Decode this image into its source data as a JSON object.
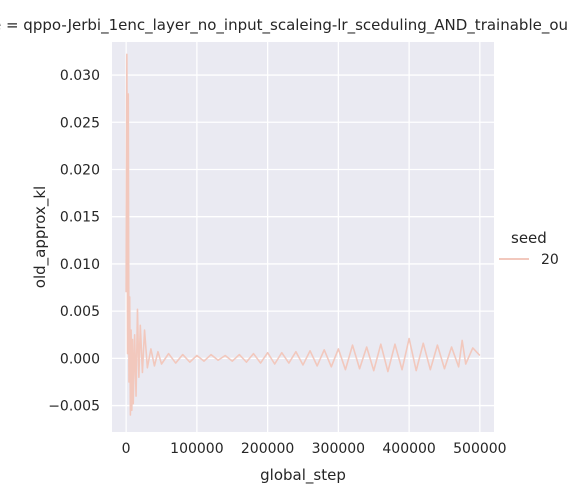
{
  "chart_data": {
    "type": "line",
    "title": "e = qppo-Jerbi_1enc_layer_no_input_scaleing-lr_sceduling_AND_trainable_ou",
    "xlabel": "global_step",
    "ylabel": "old_approx_kl",
    "xlim": [
      -20000,
      520000
    ],
    "ylim": [
      -0.0078,
      0.0335
    ],
    "x_ticks": [
      0,
      100000,
      200000,
      300000,
      400000,
      500000
    ],
    "x_tick_labels": [
      "0",
      "100000",
      "200000",
      "300000",
      "400000",
      "500000"
    ],
    "y_ticks": [
      -0.005,
      0.0,
      0.005,
      0.01,
      0.015,
      0.02,
      0.025,
      0.03
    ],
    "y_tick_labels": [
      "−0.005",
      "0.000",
      "0.005",
      "0.010",
      "0.015",
      "0.020",
      "0.025",
      "0.030"
    ],
    "grid": true,
    "background": "#eaeaf2",
    "grid_color": "#ffffff",
    "line_color": "#f2c8bd",
    "legend": {
      "title": "seed",
      "placement": "right",
      "entries": [
        "20"
      ]
    },
    "series": [
      {
        "name": "20",
        "x": [
          0,
          1000,
          2000,
          3000,
          4000,
          5000,
          6000,
          7000,
          8000,
          9000,
          10000,
          12000,
          14000,
          16000,
          18000,
          20000,
          23000,
          26000,
          30000,
          35000,
          40000,
          45000,
          50000,
          60000,
          70000,
          80000,
          90000,
          100000,
          110000,
          120000,
          130000,
          140000,
          150000,
          160000,
          170000,
          180000,
          190000,
          200000,
          210000,
          220000,
          230000,
          240000,
          250000,
          260000,
          270000,
          280000,
          290000,
          300000,
          310000,
          320000,
          330000,
          340000,
          350000,
          360000,
          370000,
          380000,
          390000,
          400000,
          410000,
          420000,
          430000,
          440000,
          450000,
          460000,
          470000,
          475000,
          480000,
          490000,
          500000
        ],
        "y": [
          0.007,
          0.0322,
          0.0005,
          0.028,
          -0.0025,
          0.0065,
          -0.006,
          0.003,
          -0.0055,
          0.002,
          -0.0048,
          0.0025,
          -0.004,
          0.0052,
          -0.002,
          0.0035,
          -0.0015,
          0.003,
          -0.001,
          0.001,
          -0.0008,
          0.0007,
          -0.0006,
          0.0005,
          -0.0005,
          0.0004,
          -0.0004,
          0.0003,
          -0.0003,
          0.0004,
          -0.0002,
          0.0003,
          -0.0003,
          0.0004,
          -0.0004,
          0.0005,
          -0.0005,
          0.0006,
          -0.0006,
          0.0006,
          -0.0005,
          0.0007,
          -0.0007,
          0.0008,
          -0.0008,
          0.0009,
          -0.0009,
          0.001,
          -0.0012,
          0.0014,
          -0.0011,
          0.0012,
          -0.0013,
          0.0015,
          -0.0014,
          0.0015,
          -0.0012,
          0.0021,
          -0.0013,
          0.0016,
          -0.0012,
          0.0014,
          -0.0011,
          0.0012,
          -0.0009,
          0.0019,
          -0.0006,
          0.0011,
          0.0003
        ]
      }
    ]
  }
}
